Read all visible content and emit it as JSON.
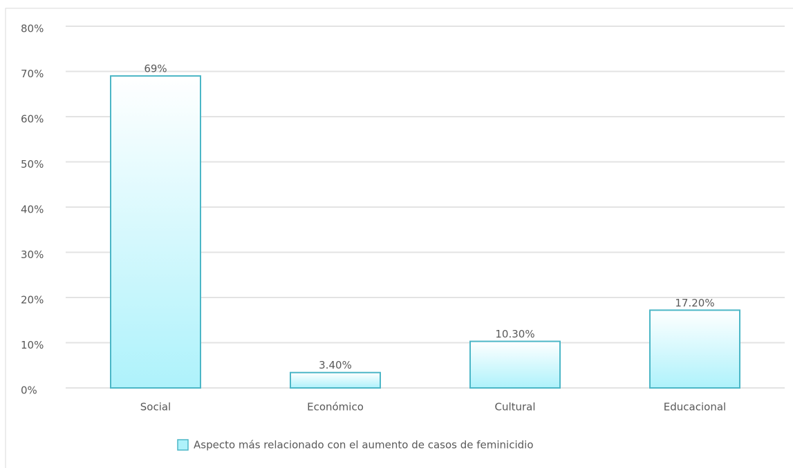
{
  "chart_data": {
    "type": "bar",
    "categories": [
      "Social",
      "Económico",
      "Cultural",
      "Educacional"
    ],
    "series": [
      {
        "name": "Aspecto más relacionado con el aumento de casos de feminicidio",
        "color": "#aef2fb",
        "values": [
          69,
          3.4,
          10.3,
          17.2
        ],
        "value_labels": [
          "69%",
          "3.40%",
          "10.30%",
          "17.20%"
        ]
      }
    ],
    "ylim": [
      0,
      80
    ],
    "yticks": [
      {
        "value": 0,
        "label": "0%"
      },
      {
        "value": 10,
        "label": "10%"
      },
      {
        "value": 20,
        "label": "20%"
      },
      {
        "value": 30,
        "label": "30%"
      },
      {
        "value": 40,
        "label": "40%"
      },
      {
        "value": 50,
        "label": "50%"
      },
      {
        "value": 60,
        "label": "60%"
      },
      {
        "value": 70,
        "label": "70%"
      },
      {
        "value": 80,
        "label": "80%"
      }
    ],
    "grid": true,
    "legend": "bottom"
  }
}
